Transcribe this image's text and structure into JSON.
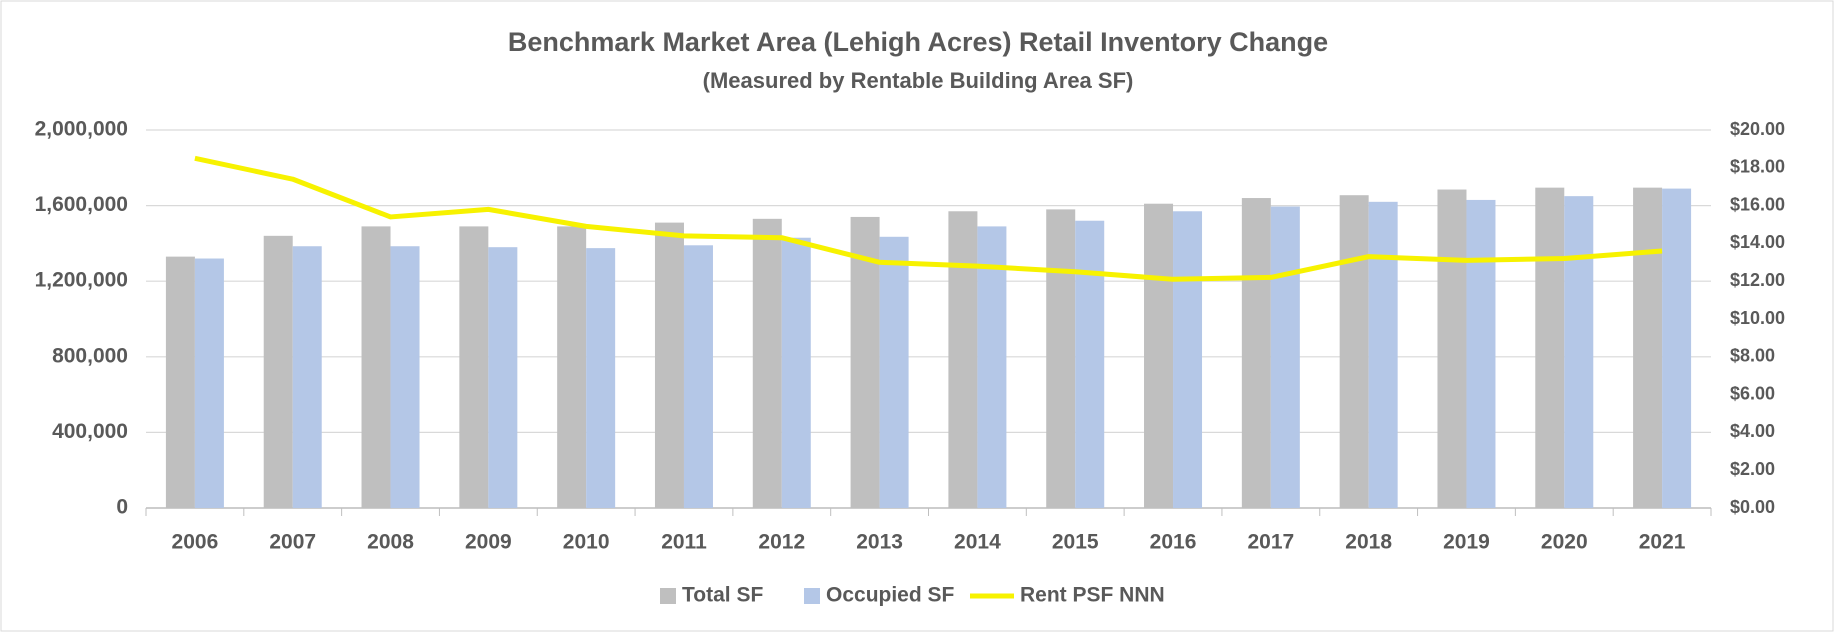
{
  "chart_data": {
    "type": "bar_line",
    "title": "Benchmark Market Area (Lehigh Acres) Retail Inventory Change",
    "subtitle": "(Measured by Rentable Building Area SF)",
    "categories": [
      "2006",
      "2007",
      "2008",
      "2009",
      "2010",
      "2011",
      "2012",
      "2013",
      "2014",
      "2015",
      "2016",
      "2017",
      "2018",
      "2019",
      "2020",
      "2021"
    ],
    "series": [
      {
        "name": "Total SF",
        "type": "bar",
        "color": "#bfbfbf",
        "values": [
          1330000,
          1440000,
          1490000,
          1490000,
          1490000,
          1510000,
          1530000,
          1540000,
          1570000,
          1580000,
          1610000,
          1640000,
          1655000,
          1685000,
          1695000,
          1695000
        ]
      },
      {
        "name": "Occupied SF",
        "type": "bar",
        "color": "#b4c7e7",
        "values": [
          1320000,
          1385000,
          1385000,
          1380000,
          1375000,
          1390000,
          1430000,
          1435000,
          1490000,
          1520000,
          1570000,
          1595000,
          1620000,
          1630000,
          1650000,
          1690000
        ]
      },
      {
        "name": "Rent PSF NNN",
        "type": "line",
        "axis": "y2",
        "color": "#f7f200",
        "values": [
          18.5,
          17.4,
          15.4,
          15.8,
          14.9,
          14.4,
          14.3,
          13.0,
          12.8,
          12.5,
          12.1,
          12.2,
          13.3,
          13.1,
          13.2,
          13.6
        ]
      }
    ],
    "ylim": [
      0,
      2000000
    ],
    "yticks": [
      0,
      {
        "value": 400000,
        "label": "400,000"
      },
      {
        "value": 800000,
        "label": "800,000"
      },
      {
        "value": 1200000,
        "label": "1,200,000"
      },
      {
        "value": 1600000,
        "label": "1,600,000"
      },
      {
        "value": 2000000,
        "label": "2,000,000"
      }
    ],
    "y2lim": [
      0,
      20
    ],
    "y2ticks": [
      {
        "value": 0,
        "label": "$0.00"
      },
      {
        "value": 2,
        "label": "$2.00"
      },
      {
        "value": 4,
        "label": "$4.00"
      },
      {
        "value": 6,
        "label": "$6.00"
      },
      {
        "value": 8,
        "label": "$8.00"
      },
      {
        "value": 10,
        "label": "$10.00"
      },
      {
        "value": 12,
        "label": "$12.00"
      },
      {
        "value": 14,
        "label": "$14.00"
      },
      {
        "value": 16,
        "label": "$16.00"
      },
      {
        "value": 18,
        "label": "$18.00"
      },
      {
        "value": 20,
        "label": "$20.00"
      }
    ],
    "grid": true,
    "legend": "bottom"
  }
}
